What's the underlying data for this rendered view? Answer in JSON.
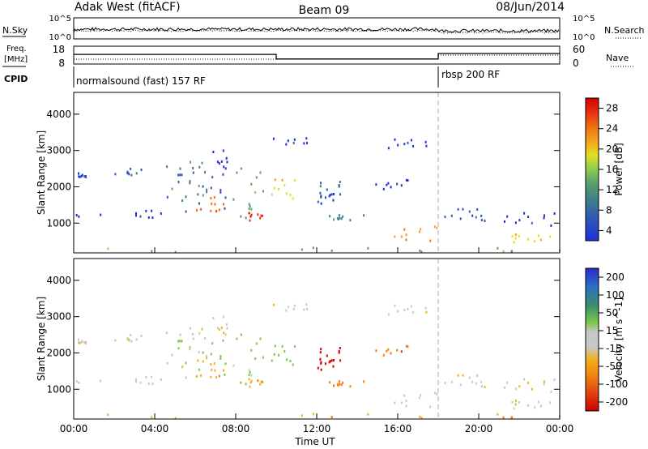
{
  "chart_data": {
    "type": "heatmap",
    "header": {
      "station": "Adak West (fitACF)",
      "beam": "Beam 09",
      "date": "08/Jun/2014"
    },
    "noise_panel": {
      "left_label": "N.Sky",
      "right_label": "N.Search",
      "left_ticks": [
        "10^5",
        "10^0"
      ],
      "right_ticks": [
        "10^5",
        "10^0"
      ]
    },
    "freq_panel": {
      "left_label_line1": "Freq.",
      "left_label_line2": "[MHz]",
      "right_label": "Nave",
      "left_ticks": [
        "18",
        "8"
      ],
      "right_ticks": [
        "60",
        "0"
      ],
      "freq_mhz": [
        {
          "start_hour": 0,
          "end_hour": 10,
          "value": 13.4
        },
        {
          "start_hour": 10,
          "end_hour": 18,
          "value": 10.8
        },
        {
          "start_hour": 18,
          "end_hour": 24,
          "value": 13.9
        }
      ]
    },
    "cpid": {
      "label": "CPID",
      "modes": [
        {
          "text": "normalsound (fast) 157 RF",
          "start_hour": 0,
          "end_hour": 18
        },
        {
          "text": "rbsp 200 RF",
          "start_hour": 18,
          "end_hour": 24
        }
      ]
    },
    "x_axis": {
      "label": "Time UT",
      "range_hours": [
        0,
        24
      ],
      "tick_labels": [
        "00:00",
        "04:00",
        "08:00",
        "12:00",
        "16:00",
        "20:00",
        "00:00"
      ]
    },
    "y_axis": {
      "label": "Slant Range [km]",
      "range_km": [
        180,
        4600
      ],
      "tick_labels": [
        "1000",
        "2000",
        "3000",
        "4000"
      ]
    },
    "power_panel": {
      "colorbar_label": "Power [dB]",
      "colorbar_ticks": [
        "28",
        "24",
        "20",
        "16",
        "12",
        "8",
        "4"
      ],
      "color_scale": [
        "#1e2fd8",
        "#2e56b8",
        "#3c7e8a",
        "#5a9e6a",
        "#8ccc50",
        "#e0e020",
        "#f5a020",
        "#f07010",
        "#e83010",
        "#d80000"
      ]
    },
    "velocity_panel": {
      "colorbar_label": "Velocity [m s^-1]",
      "colorbar_ticks": [
        "200",
        "100",
        "50",
        "15",
        "-15",
        "-50",
        "-100",
        "-200"
      ],
      "color_scale": [
        "#2a2ad0",
        "#2a70c8",
        "#3c8c6a",
        "#7ac84a",
        "#c8c8c8",
        "#f0b020",
        "#f08010",
        "#e04010",
        "#d00000"
      ]
    }
  }
}
